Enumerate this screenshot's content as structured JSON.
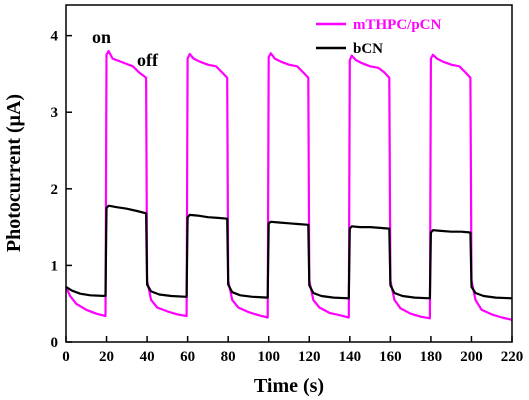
{
  "chart_data": {
    "type": "line",
    "xlabel": "Time (s)",
    "ylabel": "Photocurrent (μA)",
    "xlim": [
      0,
      220
    ],
    "ylim": [
      0,
      4.4
    ],
    "xticks": [
      "0",
      "20",
      "40",
      "60",
      "80",
      "100",
      "120",
      "140",
      "160",
      "180",
      "200",
      "220"
    ],
    "yticks": [
      "0",
      "1",
      "2",
      "3",
      "4"
    ],
    "legend_position": "top-right",
    "annotations": {
      "on": "on",
      "off": "off"
    },
    "series": [
      {
        "name": "mTHPC/pCN",
        "color": "#ff00ff",
        "points": [
          [
            0,
            0.72
          ],
          [
            2,
            0.6
          ],
          [
            5,
            0.5
          ],
          [
            10,
            0.42
          ],
          [
            15,
            0.37
          ],
          [
            19.5,
            0.34
          ],
          [
            20,
            3.75
          ],
          [
            21,
            3.8
          ],
          [
            23,
            3.7
          ],
          [
            26,
            3.67
          ],
          [
            30,
            3.63
          ],
          [
            33,
            3.6
          ],
          [
            36,
            3.52
          ],
          [
            39.5,
            3.45
          ],
          [
            40,
            0.8
          ],
          [
            42,
            0.55
          ],
          [
            45,
            0.45
          ],
          [
            50,
            0.4
          ],
          [
            55,
            0.36
          ],
          [
            59.5,
            0.34
          ],
          [
            60,
            3.7
          ],
          [
            61,
            3.76
          ],
          [
            63,
            3.7
          ],
          [
            66,
            3.66
          ],
          [
            70,
            3.62
          ],
          [
            74,
            3.6
          ],
          [
            77,
            3.52
          ],
          [
            79.5,
            3.45
          ],
          [
            80,
            0.8
          ],
          [
            82,
            0.55
          ],
          [
            85,
            0.45
          ],
          [
            90,
            0.39
          ],
          [
            95,
            0.35
          ],
          [
            99.5,
            0.32
          ],
          [
            100,
            3.72
          ],
          [
            101,
            3.77
          ],
          [
            103,
            3.7
          ],
          [
            106,
            3.66
          ],
          [
            110,
            3.62
          ],
          [
            114,
            3.6
          ],
          [
            117,
            3.52
          ],
          [
            119.5,
            3.45
          ],
          [
            120,
            0.8
          ],
          [
            122,
            0.55
          ],
          [
            125,
            0.45
          ],
          [
            130,
            0.38
          ],
          [
            135,
            0.35
          ],
          [
            139.5,
            0.32
          ],
          [
            140,
            3.68
          ],
          [
            141,
            3.74
          ],
          [
            143,
            3.68
          ],
          [
            146,
            3.64
          ],
          [
            150,
            3.6
          ],
          [
            154,
            3.58
          ],
          [
            157,
            3.52
          ],
          [
            159.5,
            3.45
          ],
          [
            160,
            0.8
          ],
          [
            162,
            0.55
          ],
          [
            165,
            0.44
          ],
          [
            170,
            0.37
          ],
          [
            175,
            0.33
          ],
          [
            179.5,
            0.31
          ],
          [
            180,
            3.7
          ],
          [
            181,
            3.75
          ],
          [
            183,
            3.7
          ],
          [
            186,
            3.66
          ],
          [
            190,
            3.62
          ],
          [
            194,
            3.6
          ],
          [
            197,
            3.52
          ],
          [
            199.5,
            3.45
          ],
          [
            200,
            0.8
          ],
          [
            202,
            0.55
          ],
          [
            205,
            0.42
          ],
          [
            210,
            0.36
          ],
          [
            215,
            0.32
          ],
          [
            220,
            0.29
          ]
        ]
      },
      {
        "name": "bCN",
        "color": "#000000",
        "points": [
          [
            0,
            0.72
          ],
          [
            3,
            0.67
          ],
          [
            7,
            0.63
          ],
          [
            12,
            0.61
          ],
          [
            19.5,
            0.6
          ],
          [
            20,
            1.75
          ],
          [
            21,
            1.78
          ],
          [
            25,
            1.76
          ],
          [
            30,
            1.74
          ],
          [
            35,
            1.71
          ],
          [
            39.5,
            1.68
          ],
          [
            40,
            0.75
          ],
          [
            42,
            0.66
          ],
          [
            46,
            0.62
          ],
          [
            52,
            0.6
          ],
          [
            59.5,
            0.59
          ],
          [
            60,
            1.63
          ],
          [
            61,
            1.66
          ],
          [
            65,
            1.65
          ],
          [
            70,
            1.63
          ],
          [
            75,
            1.62
          ],
          [
            79.5,
            1.61
          ],
          [
            80,
            0.75
          ],
          [
            82,
            0.65
          ],
          [
            86,
            0.61
          ],
          [
            92,
            0.59
          ],
          [
            99.5,
            0.58
          ],
          [
            100,
            1.55
          ],
          [
            101,
            1.57
          ],
          [
            105,
            1.56
          ],
          [
            110,
            1.55
          ],
          [
            115,
            1.54
          ],
          [
            119.5,
            1.53
          ],
          [
            120,
            0.74
          ],
          [
            122,
            0.64
          ],
          [
            126,
            0.6
          ],
          [
            132,
            0.58
          ],
          [
            139.5,
            0.57
          ],
          [
            140,
            1.48
          ],
          [
            141,
            1.51
          ],
          [
            145,
            1.5
          ],
          [
            150,
            1.5
          ],
          [
            155,
            1.49
          ],
          [
            159.5,
            1.48
          ],
          [
            160,
            0.74
          ],
          [
            162,
            0.64
          ],
          [
            166,
            0.6
          ],
          [
            172,
            0.58
          ],
          [
            179.5,
            0.57
          ],
          [
            180,
            1.43
          ],
          [
            181,
            1.46
          ],
          [
            185,
            1.45
          ],
          [
            190,
            1.44
          ],
          [
            195,
            1.44
          ],
          [
            199.5,
            1.43
          ],
          [
            200,
            0.72
          ],
          [
            202,
            0.64
          ],
          [
            206,
            0.6
          ],
          [
            212,
            0.58
          ],
          [
            220,
            0.57
          ]
        ]
      }
    ]
  }
}
